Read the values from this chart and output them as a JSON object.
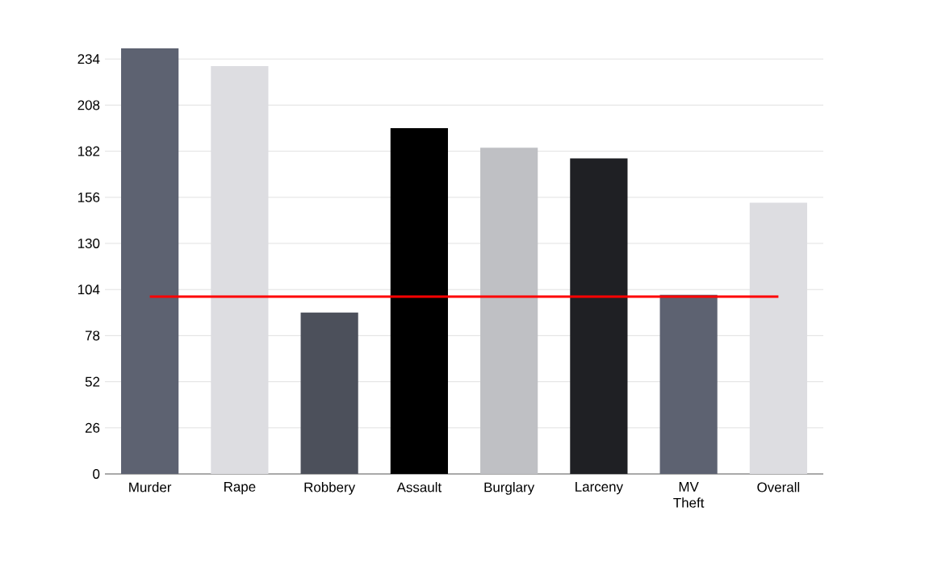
{
  "chart_data": {
    "type": "bar",
    "categories": [
      "Murder",
      "Rape",
      "Robbery",
      "Assault",
      "Burglary",
      "Larceny",
      "MV Theft",
      "Overall"
    ],
    "values": [
      240,
      230,
      91,
      195,
      184,
      178,
      101,
      153
    ],
    "colors": [
      "#5d6271",
      "#dddde1",
      "#4c505b",
      "#000000",
      "#bfc0c4",
      "#1f2024",
      "#5d6271",
      "#dddde1"
    ],
    "ylim": [
      0,
      240
    ],
    "yticks": [
      0,
      26,
      52,
      78,
      104,
      130,
      156,
      182,
      208,
      234
    ],
    "grid": "y",
    "ref_lines": [
      {
        "axis": "y",
        "value": 100,
        "color": "#ff0000"
      }
    ]
  }
}
